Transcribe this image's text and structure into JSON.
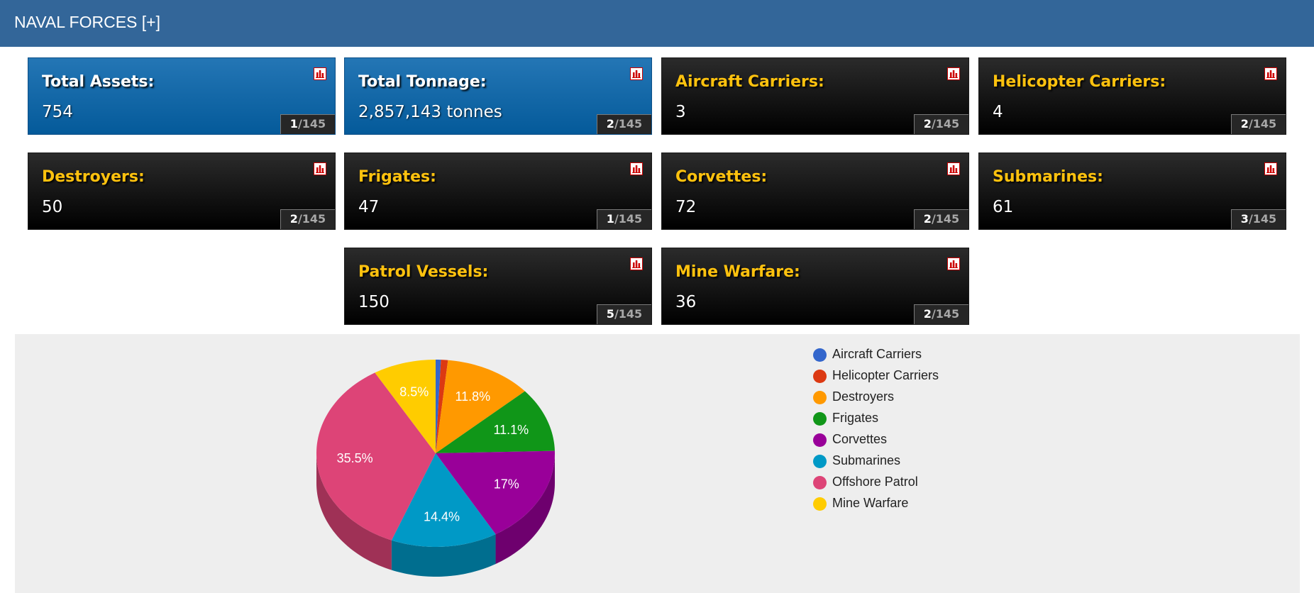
{
  "header": {
    "title": "NAVAL FORCES [+]"
  },
  "cards": [
    {
      "label": "Total Assets:",
      "value": "754",
      "rank": "1",
      "total": "145",
      "style": "blue"
    },
    {
      "label": "Total Tonnage:",
      "value": "2,857,143 tonnes",
      "rank": "2",
      "total": "145",
      "style": "blue"
    },
    {
      "label": "Aircraft Carriers:",
      "value": "3",
      "rank": "2",
      "total": "145",
      "style": "dark"
    },
    {
      "label": "Helicopter Carriers:",
      "value": "4",
      "rank": "2",
      "total": "145",
      "style": "dark"
    },
    {
      "label": "Destroyers:",
      "value": "50",
      "rank": "2",
      "total": "145",
      "style": "dark"
    },
    {
      "label": "Frigates:",
      "value": "47",
      "rank": "1",
      "total": "145",
      "style": "dark"
    },
    {
      "label": "Corvettes:",
      "value": "72",
      "rank": "2",
      "total": "145",
      "style": "dark"
    },
    {
      "label": "Submarines:",
      "value": "61",
      "rank": "3",
      "total": "145",
      "style": "dark"
    },
    {
      "label": "Patrol Vessels:",
      "value": "150",
      "rank": "5",
      "total": "145",
      "style": "dark"
    },
    {
      "label": "Mine Warfare:",
      "value": "36",
      "rank": "2",
      "total": "145",
      "style": "dark"
    }
  ],
  "icons": {
    "card_icon": "bar-chart-icon"
  },
  "colors": {
    "header": "#336699",
    "label_gold": "#ffc20e",
    "panel_bg": "#eeeeee",
    "icon_red": "#cc0000"
  },
  "chart_data": {
    "type": "pie",
    "style": "3d",
    "labels": [
      "Aircraft Carriers",
      "Helicopter Carriers",
      "Destroyers",
      "Frigates",
      "Corvettes",
      "Submarines",
      "Offshore Patrol",
      "Mine Warfare"
    ],
    "values": [
      3,
      4,
      50,
      47,
      72,
      61,
      150,
      36
    ],
    "data_labels": [
      "",
      "",
      "11.8%",
      "11.1%",
      "17%",
      "14.4%",
      "35.5%",
      "8.5%"
    ],
    "colors": [
      "#3366cc",
      "#dc3912",
      "#ff9900",
      "#109618",
      "#990099",
      "#0099c6",
      "#dd4477",
      "#ffcc00"
    ],
    "legend_position": "right"
  }
}
